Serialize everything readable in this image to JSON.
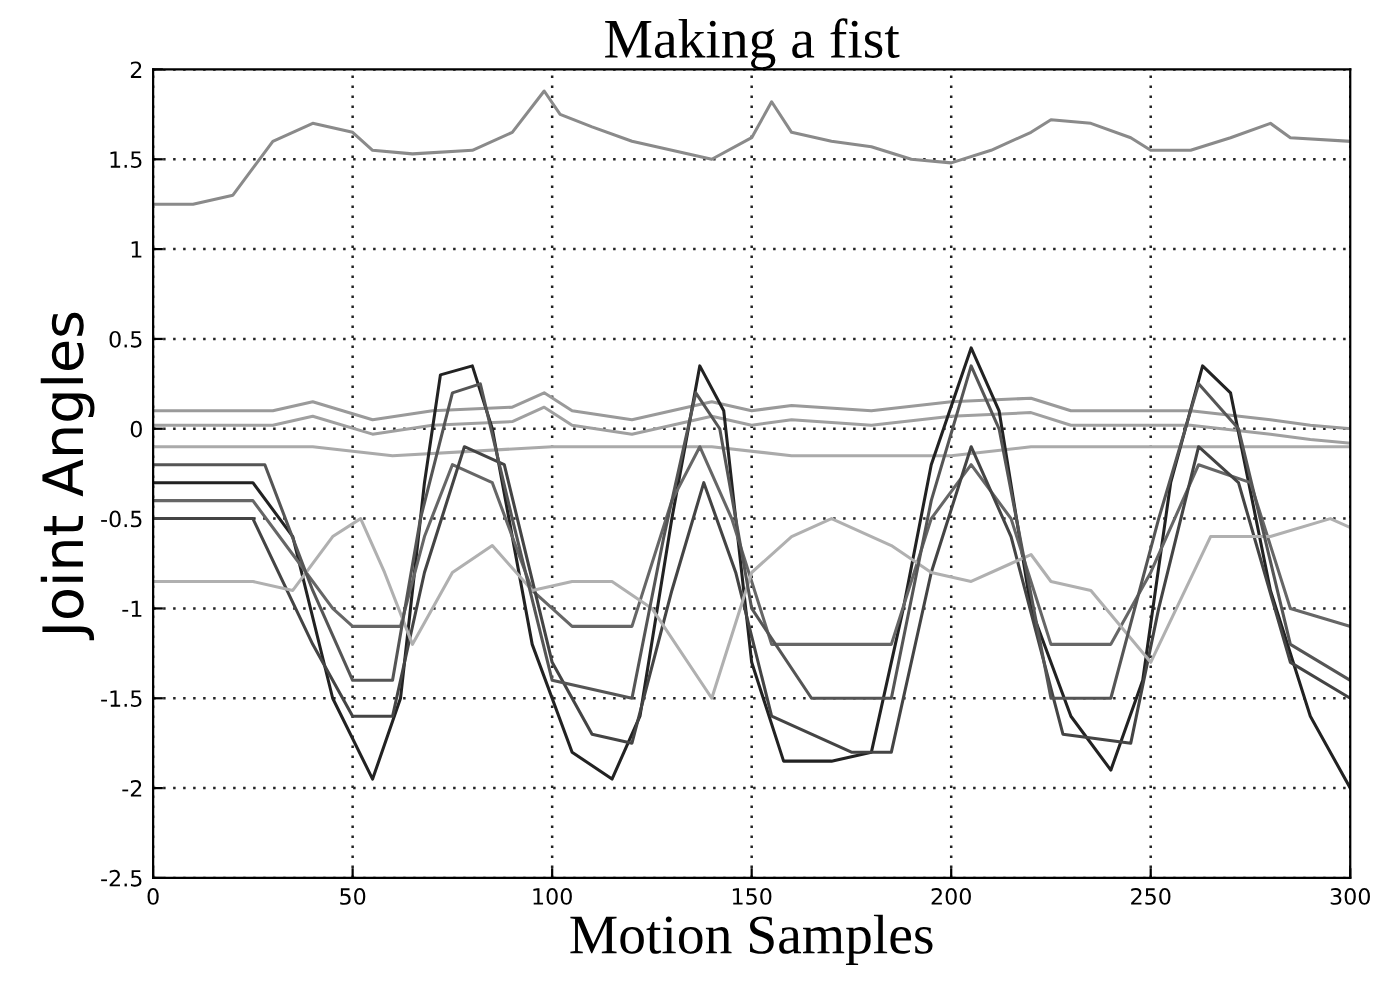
{
  "chart_data": {
    "type": "line",
    "title": "Making a fist",
    "xlabel": "Motion Samples",
    "ylabel": "Joint Angles",
    "xlim": [
      0,
      300
    ],
    "xticks": [
      0,
      50,
      100,
      150,
      200,
      250,
      300
    ],
    "ylim": [
      -2.5,
      2
    ],
    "yticks": [
      -2.5,
      -2,
      -1.5,
      -1,
      -0.5,
      0,
      0.5,
      1,
      1.5,
      2
    ],
    "grid": true,
    "line_style": "solid",
    "series": [
      {
        "color": "#8a8a8a",
        "x": [
          0,
          10,
          20,
          30,
          40,
          50,
          55,
          65,
          80,
          90,
          98,
          102,
          110,
          120,
          130,
          140,
          150,
          155,
          160,
          170,
          180,
          190,
          200,
          210,
          220,
          225,
          235,
          245,
          250,
          260,
          270,
          280,
          285,
          300
        ],
        "values": [
          1.25,
          1.25,
          1.3,
          1.6,
          1.7,
          1.65,
          1.55,
          1.53,
          1.55,
          1.65,
          1.88,
          1.75,
          1.68,
          1.6,
          1.55,
          1.5,
          1.62,
          1.82,
          1.65,
          1.6,
          1.57,
          1.5,
          1.48,
          1.55,
          1.65,
          1.72,
          1.7,
          1.62,
          1.55,
          1.55,
          1.62,
          1.7,
          1.62,
          1.6
        ]
      },
      {
        "color": "#9a9a9a",
        "x": [
          0,
          30,
          40,
          55,
          70,
          90,
          98,
          105,
          120,
          140,
          150,
          160,
          180,
          200,
          220,
          230,
          260,
          280,
          290,
          300
        ],
        "values": [
          0.1,
          0.1,
          0.15,
          0.05,
          0.1,
          0.12,
          0.2,
          0.1,
          0.05,
          0.15,
          0.1,
          0.13,
          0.1,
          0.15,
          0.17,
          0.1,
          0.1,
          0.05,
          0.02,
          0.0
        ]
      },
      {
        "color": "#a0a0a0",
        "x": [
          0,
          30,
          40,
          55,
          70,
          90,
          98,
          105,
          120,
          140,
          150,
          160,
          180,
          200,
          220,
          230,
          260,
          280,
          290,
          300
        ],
        "values": [
          0.02,
          0.02,
          0.07,
          -0.03,
          0.02,
          0.04,
          0.12,
          0.02,
          -0.03,
          0.07,
          0.02,
          0.05,
          0.02,
          0.07,
          0.09,
          0.02,
          0.02,
          -0.03,
          -0.06,
          -0.08
        ]
      },
      {
        "color": "#aaaaaa",
        "x": [
          0,
          30,
          40,
          60,
          100,
          140,
          160,
          200,
          220,
          300
        ],
        "values": [
          -0.1,
          -0.1,
          -0.1,
          -0.15,
          -0.1,
          -0.1,
          -0.15,
          -0.15,
          -0.1,
          -0.1
        ]
      },
      {
        "color": "#222222",
        "x": [
          0,
          25,
          35,
          45,
          55,
          62,
          68,
          72,
          80,
          85,
          95,
          105,
          115,
          122,
          130,
          137,
          143,
          150,
          158,
          170,
          180,
          188,
          195,
          205,
          212,
          220,
          230,
          240,
          248,
          255,
          263,
          270,
          280,
          290,
          300
        ],
        "values": [
          -0.3,
          -0.3,
          -0.6,
          -1.5,
          -1.95,
          -1.5,
          -0.3,
          0.3,
          0.35,
          0.0,
          -1.2,
          -1.8,
          -1.95,
          -1.6,
          -0.5,
          0.35,
          0.1,
          -1.3,
          -1.85,
          -1.85,
          -1.8,
          -1.0,
          -0.2,
          0.45,
          0.1,
          -1.0,
          -1.6,
          -1.9,
          -1.4,
          -0.3,
          0.35,
          0.2,
          -0.9,
          -1.6,
          -2.0
        ]
      },
      {
        "color": "#666666",
        "x": [
          0,
          25,
          35,
          45,
          50,
          62,
          68,
          75,
          85,
          95,
          105,
          120,
          130,
          137,
          145,
          155,
          170,
          185,
          195,
          205,
          215,
          225,
          240,
          250,
          262,
          275,
          285,
          300
        ],
        "values": [
          -0.4,
          -0.4,
          -0.7,
          -1.0,
          -1.1,
          -1.1,
          -0.6,
          -0.2,
          -0.3,
          -0.9,
          -1.1,
          -1.1,
          -0.4,
          -0.1,
          -0.5,
          -1.2,
          -1.2,
          -1.2,
          -0.5,
          -0.2,
          -0.5,
          -1.2,
          -1.2,
          -0.8,
          -0.2,
          -0.3,
          -1.0,
          -1.1
        ]
      },
      {
        "color": "#444444",
        "x": [
          0,
          25,
          40,
          50,
          60,
          68,
          78,
          88,
          100,
          110,
          120,
          130,
          138,
          146,
          155,
          175,
          185,
          195,
          205,
          215,
          228,
          245,
          252,
          262,
          272,
          285,
          300
        ],
        "values": [
          -0.5,
          -0.5,
          -1.2,
          -1.6,
          -1.6,
          -0.8,
          -0.1,
          -0.2,
          -1.3,
          -1.7,
          -1.75,
          -0.9,
          -0.3,
          -0.8,
          -1.6,
          -1.8,
          -1.8,
          -0.8,
          -0.1,
          -0.6,
          -1.7,
          -1.75,
          -1.0,
          -0.1,
          -0.3,
          -1.3,
          -1.5
        ]
      },
      {
        "color": "#b0b0b0",
        "x": [
          0,
          25,
          35,
          45,
          52,
          58,
          65,
          75,
          85,
          95,
          105,
          115,
          125,
          140,
          150,
          160,
          170,
          185,
          195,
          205,
          215,
          220,
          225,
          235,
          250,
          265,
          280,
          295,
          300
        ],
        "values": [
          -0.85,
          -0.85,
          -0.9,
          -0.6,
          -0.5,
          -0.8,
          -1.2,
          -0.8,
          -0.65,
          -0.9,
          -0.85,
          -0.85,
          -1.0,
          -1.5,
          -0.8,
          -0.6,
          -0.5,
          -0.65,
          -0.8,
          -0.85,
          -0.75,
          -0.7,
          -0.85,
          -0.9,
          -1.3,
          -0.6,
          -0.6,
          -0.5,
          -0.55
        ]
      },
      {
        "color": "#555555",
        "x": [
          0,
          28,
          40,
          50,
          60,
          67,
          75,
          82,
          90,
          100,
          120,
          128,
          136,
          142,
          150,
          165,
          185,
          195,
          205,
          212,
          225,
          240,
          252,
          262,
          272,
          285,
          300
        ],
        "values": [
          -0.2,
          -0.2,
          -0.9,
          -1.4,
          -1.4,
          -0.5,
          0.2,
          0.25,
          -0.5,
          -1.4,
          -1.5,
          -0.6,
          0.2,
          0.0,
          -1.0,
          -1.5,
          -1.5,
          -0.4,
          0.35,
          0.0,
          -1.5,
          -1.5,
          -0.5,
          0.25,
          0.0,
          -1.2,
          -1.4
        ]
      }
    ]
  }
}
